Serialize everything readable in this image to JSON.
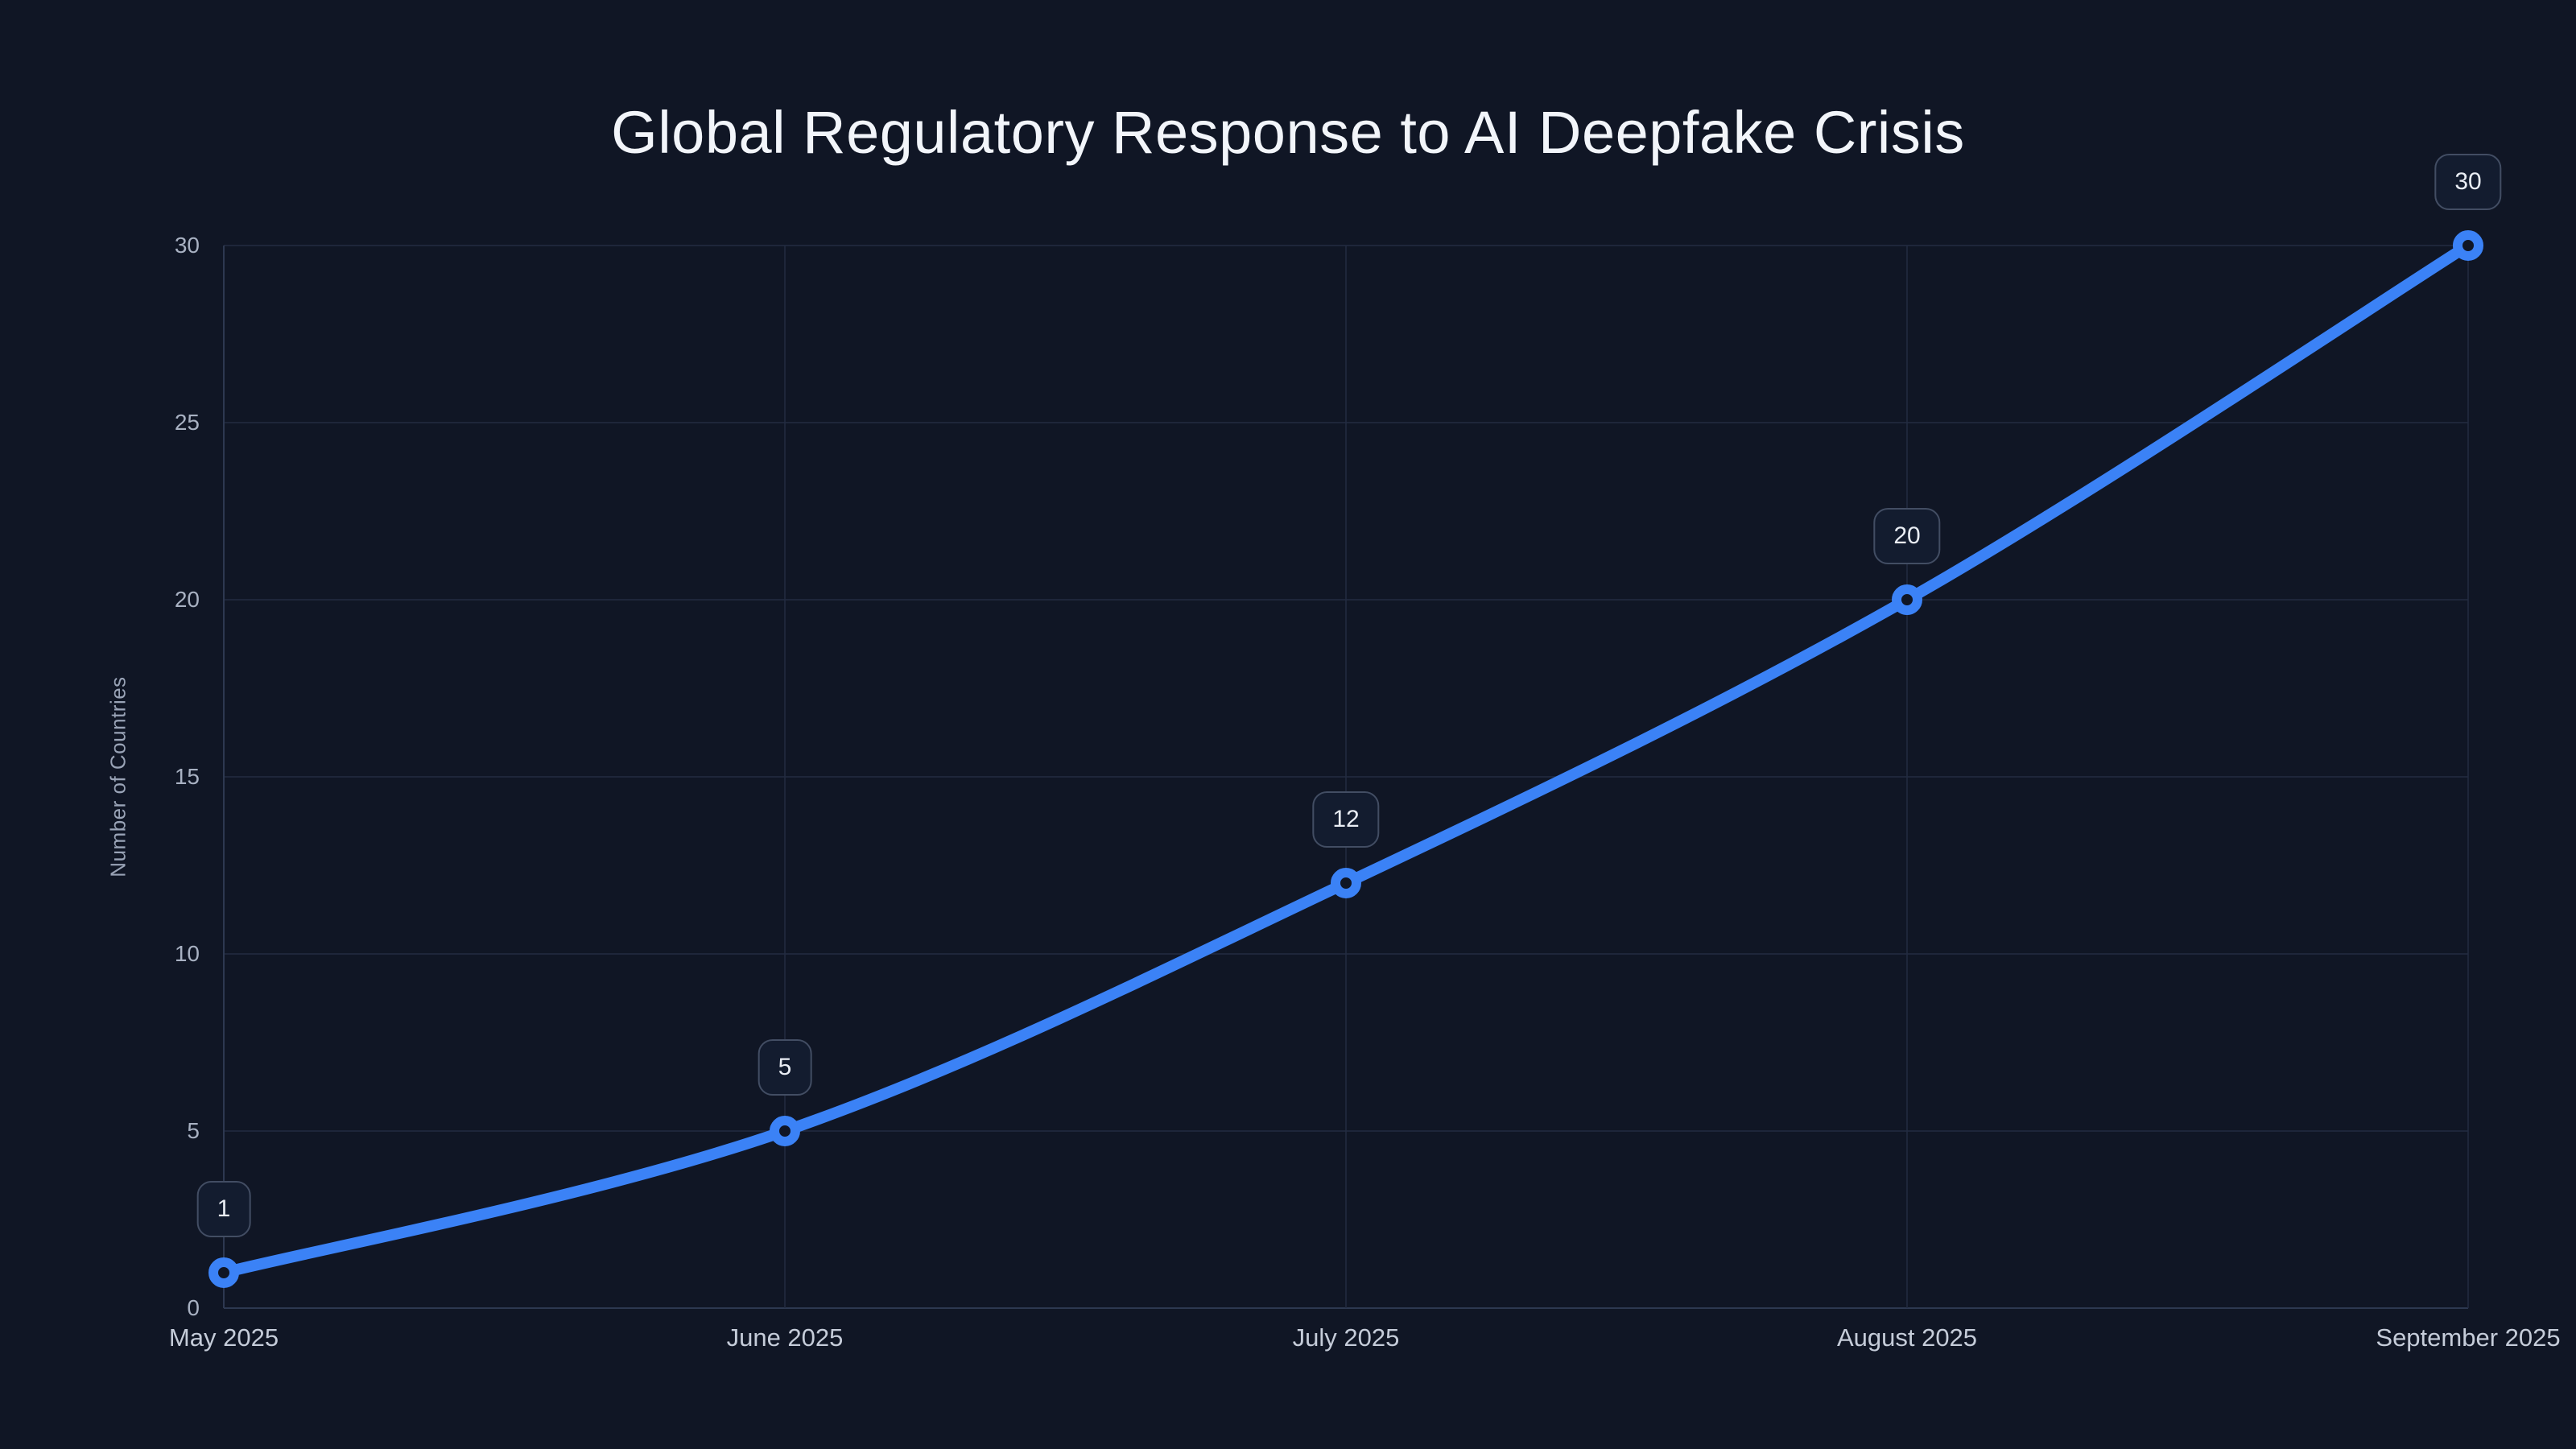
{
  "title": "Global Regulatory Response to AI Deepfake Crisis",
  "colors": {
    "background": "#101625",
    "line": "#3b82f6",
    "marker_ring": "#3b82f6",
    "marker_fill": "#101625",
    "grid": "#222c41",
    "axis_line": "#2d3850",
    "title_text": "#f2f5fa",
    "y_tick_text": "#a8b1c2",
    "x_tick_text": "#c5ccd9",
    "axis_title_text": "#99a3b6",
    "badge_background": "#131c2f",
    "badge_border": "#424d63",
    "badge_text": "#e9edf4"
  },
  "chart_data": {
    "type": "line",
    "title": "Global Regulatory Response to AI Deepfake Crisis",
    "x": [
      "May 2025",
      "June 2025",
      "July 2025",
      "August 2025",
      "September 2025"
    ],
    "series": [
      {
        "name": "Number of Countries",
        "values": [
          1,
          5,
          12,
          20,
          30
        ]
      }
    ],
    "point_labels": [
      "1",
      "5",
      "12",
      "20",
      "30"
    ],
    "xlabel": "",
    "ylabel": "Number of Countries",
    "ylim": [
      0,
      30
    ],
    "yticks": [
      0,
      5,
      10,
      15,
      20,
      25,
      30
    ],
    "grid": true,
    "legend": false,
    "line_shape": "spline",
    "marker_style": "open-circle"
  }
}
